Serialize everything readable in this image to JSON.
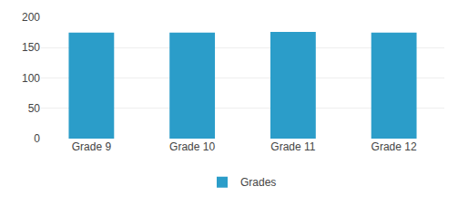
{
  "chart_data": {
    "type": "bar",
    "categories": [
      "Grade 9",
      "Grade 10",
      "Grade 11",
      "Grade 12"
    ],
    "series": [
      {
        "name": "Grades",
        "color": "#2b9dc9",
        "values": [
          175,
          175,
          176,
          175
        ]
      }
    ],
    "ylim": [
      0,
      200
    ],
    "yticks": [
      0,
      50,
      100,
      150,
      200
    ],
    "grid": true,
    "legend": "bottom"
  }
}
